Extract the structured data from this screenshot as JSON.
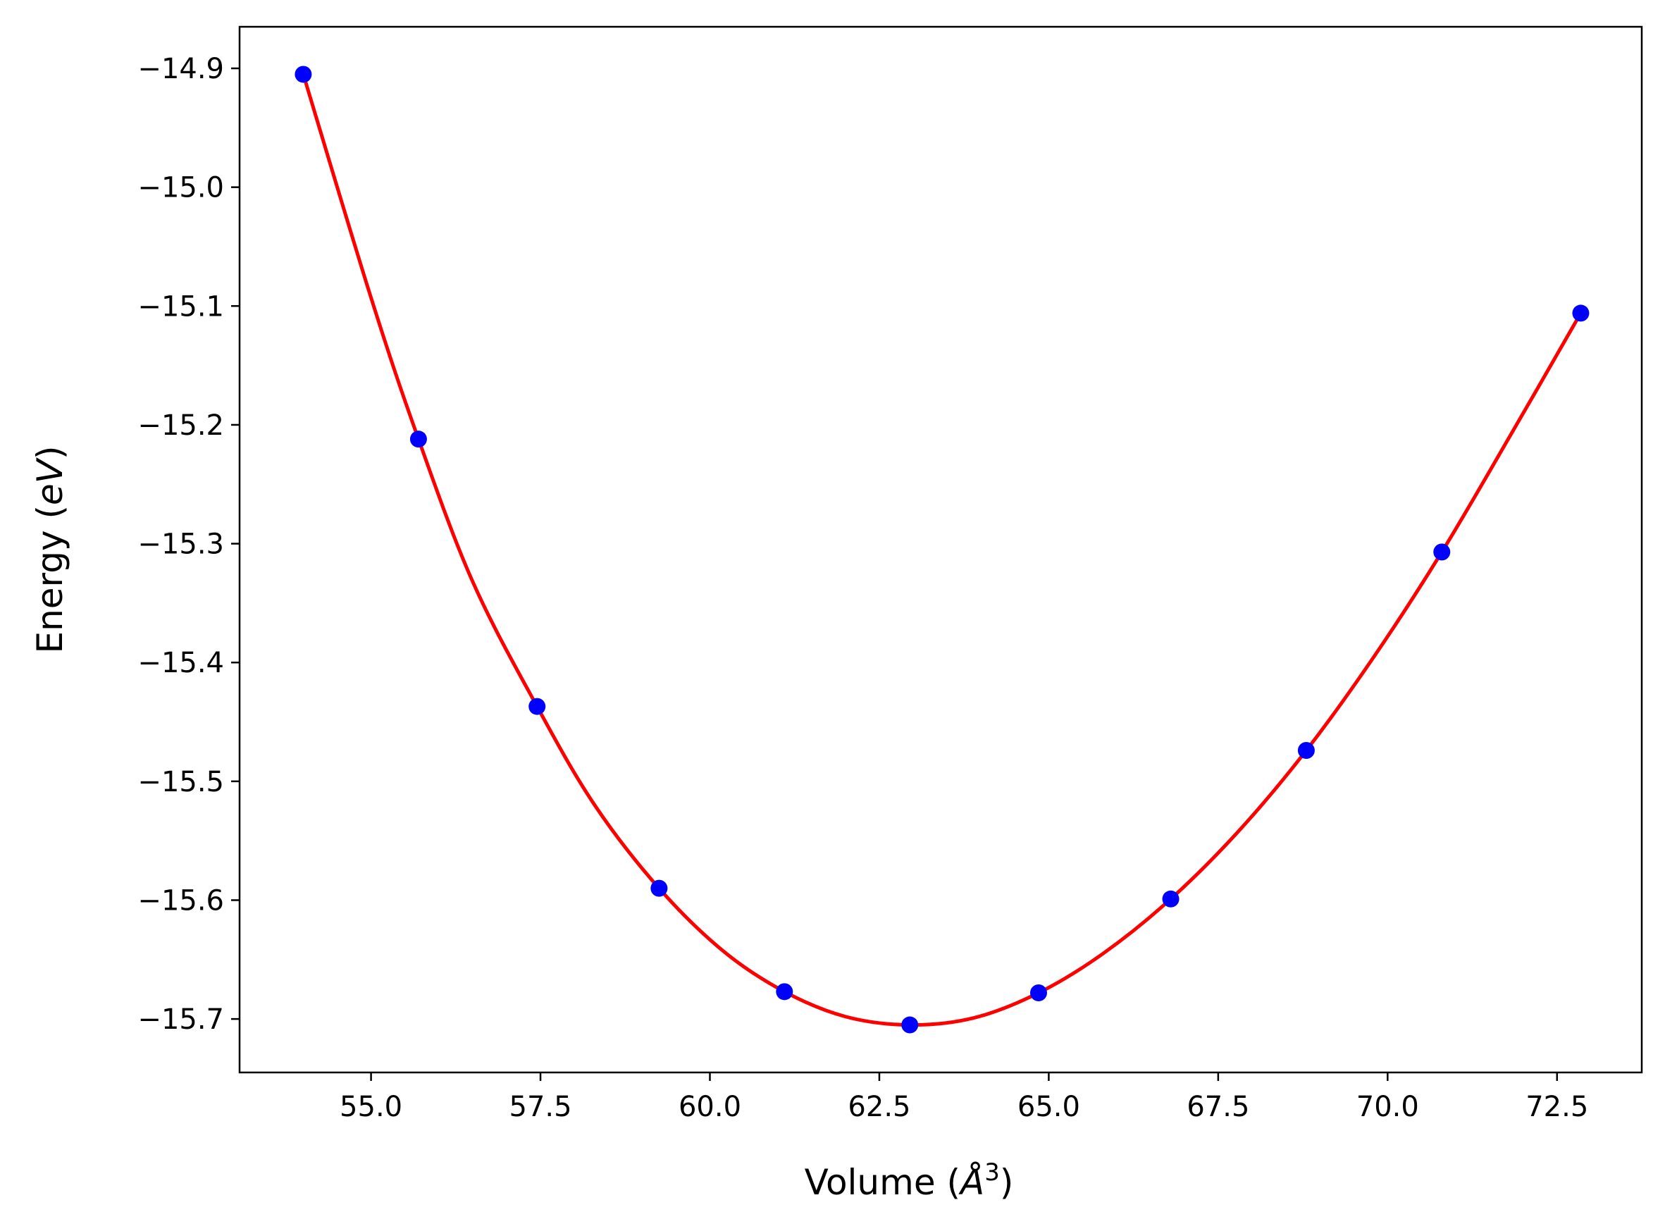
{
  "chart_data": {
    "type": "scatter",
    "xlabel": "Volume (Å³)",
    "xlabel_parts": {
      "text": "Volume (",
      "symbol": "Å",
      "exponent": "3",
      "close": ")"
    },
    "ylabel": "Energy (eV)",
    "ylabel_parts": {
      "text": "Energy (",
      "unit": "eV",
      "close": ")"
    },
    "xlim": [
      53.06,
      73.75
    ],
    "ylim": [
      -15.745,
      -14.865
    ],
    "xticks": [
      55.0,
      57.5,
      60.0,
      62.5,
      65.0,
      67.5,
      70.0,
      72.5
    ],
    "xtick_labels": [
      "55.0",
      "57.5",
      "60.0",
      "62.5",
      "65.0",
      "67.5",
      "70.0",
      "72.5"
    ],
    "yticks": [
      -14.9,
      -15.0,
      -15.1,
      -15.2,
      -15.3,
      -15.4,
      -15.5,
      -15.6,
      -15.7
    ],
    "ytick_labels": [
      "−14.9",
      "−15.0",
      "−15.1",
      "−15.2",
      "−15.3",
      "−15.4",
      "−15.5",
      "−15.6",
      "−15.7"
    ],
    "grid": false,
    "series": [
      {
        "kind": "points",
        "color": "#0000ff",
        "x": [
          54.0,
          55.7,
          57.45,
          59.25,
          61.1,
          62.95,
          64.85,
          66.8,
          68.8,
          70.8,
          72.85
        ],
        "y": [
          -14.905,
          -15.212,
          -15.437,
          -15.59,
          -15.677,
          -15.705,
          -15.678,
          -15.599,
          -15.474,
          -15.307,
          -15.106
        ]
      },
      {
        "kind": "fit-curve",
        "color": "#ff0000",
        "x": [
          54.0,
          55.0,
          55.7,
          56.5,
          57.45,
          58.3,
          59.25,
          60.2,
          61.1,
          62.0,
          62.95,
          63.9,
          64.85,
          65.8,
          66.8,
          67.8,
          68.8,
          69.8,
          70.8,
          71.8,
          72.85
        ],
        "y": [
          -14.905,
          -15.093,
          -15.212,
          -15.332,
          -15.437,
          -15.52,
          -15.59,
          -15.643,
          -15.677,
          -15.698,
          -15.705,
          -15.699,
          -15.678,
          -15.645,
          -15.599,
          -15.542,
          -15.474,
          -15.395,
          -15.307,
          -15.21,
          -15.106
        ]
      }
    ]
  }
}
